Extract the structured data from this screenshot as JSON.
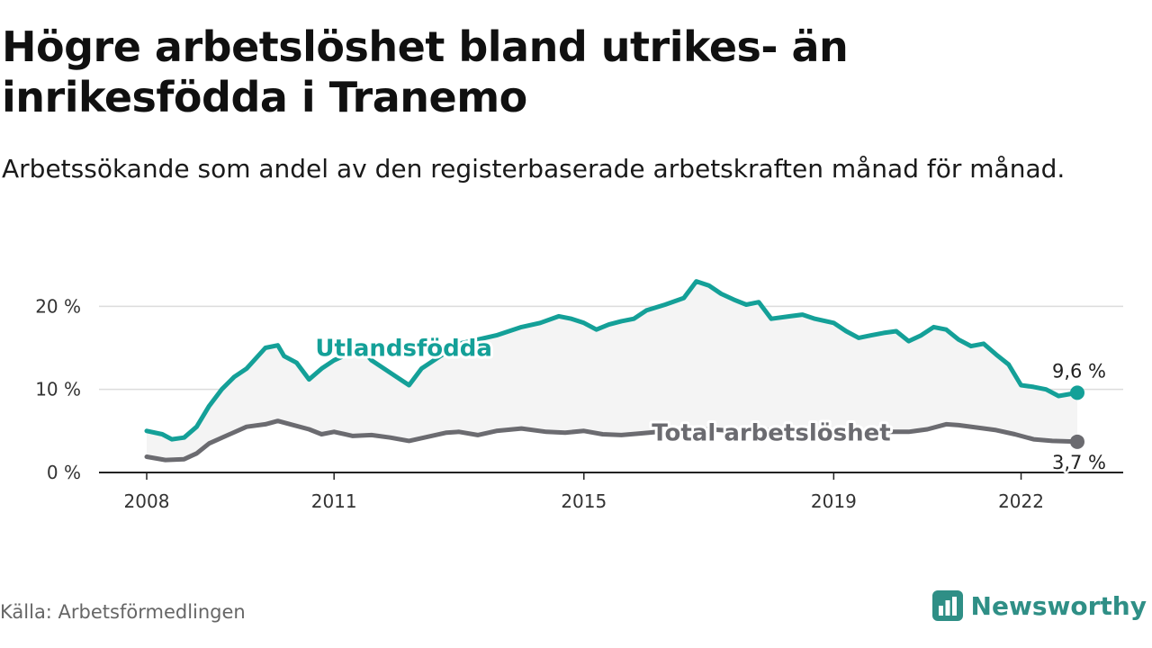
{
  "header": {
    "title": "Högre arbetslöshet bland utrikes- än inrikesfödda i Tranemo",
    "subtitle": "Arbetssökande som andel av den registerbaserade arbetskraften månad för månad."
  },
  "footer": {
    "source": "Källa: Arbetsförmedlingen",
    "brand": "Newsworthy",
    "brand_icon": "newsworthy-logo-icon"
  },
  "colors": {
    "foreign": "#14a098",
    "total": "#6b6b70",
    "band": "#ededed",
    "grid": "#dcdcdc",
    "brand": "#2f8f86"
  },
  "chart_data": {
    "type": "line",
    "title": "Högre arbetslöshet bland utrikes- än inrikesfödda i Tranemo",
    "xlabel": "",
    "ylabel": "",
    "xlim": [
      2008.0,
      2022.9
    ],
    "ylim": [
      0,
      23.5
    ],
    "x_ticks": [
      {
        "value": 2008,
        "label": "2008"
      },
      {
        "value": 2011,
        "label": "2011"
      },
      {
        "value": 2015,
        "label": "2015"
      },
      {
        "value": 2019,
        "label": "2019"
      },
      {
        "value": 2022,
        "label": "2022"
      }
    ],
    "y_ticks": [
      {
        "value": 0,
        "label": "0 %"
      },
      {
        "value": 10,
        "label": "10 %"
      },
      {
        "value": 20,
        "label": "20 %"
      }
    ],
    "grid": true,
    "shaded_band": "between series",
    "series": [
      {
        "name": "Utlandsfödda",
        "label": "Utlandsfödda",
        "end_label": "9,6 %",
        "color": "#14a098",
        "x": [
          2008.0,
          2008.25,
          2008.4,
          2008.6,
          2008.8,
          2009.0,
          2009.2,
          2009.4,
          2009.6,
          2009.9,
          2010.1,
          2010.2,
          2010.4,
          2010.6,
          2010.8,
          2011.0,
          2011.2,
          2011.4,
          2011.6,
          2011.8,
          2012.0,
          2012.2,
          2012.4,
          2012.6,
          2012.8,
          2013.0,
          2013.3,
          2013.6,
          2014.0,
          2014.3,
          2014.6,
          2014.8,
          2015.0,
          2015.2,
          2015.4,
          2015.6,
          2015.8,
          2016.0,
          2016.3,
          2016.6,
          2016.8,
          2017.0,
          2017.2,
          2017.4,
          2017.6,
          2017.8,
          2018.0,
          2018.3,
          2018.5,
          2018.7,
          2019.0,
          2019.2,
          2019.4,
          2019.6,
          2019.8,
          2020.0,
          2020.2,
          2020.4,
          2020.6,
          2020.8,
          2021.0,
          2021.2,
          2021.4,
          2021.6,
          2021.8,
          2022.0,
          2022.2,
          2022.4,
          2022.6,
          2022.9
        ],
        "values": [
          5.0,
          4.6,
          4.0,
          4.2,
          5.5,
          8.0,
          10.0,
          11.5,
          12.5,
          15.0,
          15.3,
          14.0,
          13.2,
          11.2,
          12.5,
          13.5,
          14.2,
          15.2,
          13.5,
          12.5,
          11.5,
          10.5,
          12.5,
          13.5,
          14.5,
          15.5,
          16.0,
          16.5,
          17.5,
          18.0,
          18.8,
          18.5,
          18.0,
          17.2,
          17.8,
          18.2,
          18.5,
          19.5,
          20.2,
          21.0,
          23.0,
          22.5,
          21.5,
          20.8,
          20.2,
          20.5,
          18.5,
          18.8,
          19.0,
          18.5,
          18.0,
          17.0,
          16.2,
          16.5,
          16.8,
          17.0,
          15.8,
          16.5,
          17.5,
          17.2,
          16.0,
          15.2,
          15.5,
          14.2,
          13.0,
          10.5,
          10.3,
          10.0,
          9.2,
          9.6
        ]
      },
      {
        "name": "Total arbetslöshet",
        "label": "Total arbetslöshet",
        "end_label": "3,7 %",
        "color": "#6b6b70",
        "x": [
          2008.0,
          2008.3,
          2008.6,
          2008.8,
          2009.0,
          2009.3,
          2009.6,
          2009.9,
          2010.1,
          2010.3,
          2010.6,
          2010.8,
          2011.0,
          2011.3,
          2011.6,
          2011.9,
          2012.2,
          2012.5,
          2012.8,
          2013.0,
          2013.3,
          2013.6,
          2014.0,
          2014.4,
          2014.7,
          2015.0,
          2015.3,
          2015.6,
          2015.9,
          2016.2,
          2016.5,
          2016.8,
          2017.0,
          2017.4,
          2017.8,
          2018.2,
          2018.6,
          2019.0,
          2019.4,
          2019.8,
          2020.2,
          2020.5,
          2020.8,
          2021.0,
          2021.3,
          2021.6,
          2021.9,
          2022.2,
          2022.5,
          2022.9
        ],
        "values": [
          1.9,
          1.5,
          1.6,
          2.3,
          3.5,
          4.5,
          5.5,
          5.8,
          6.2,
          5.8,
          5.2,
          4.6,
          4.9,
          4.4,
          4.5,
          4.2,
          3.8,
          4.3,
          4.8,
          4.9,
          4.5,
          5.0,
          5.3,
          4.9,
          4.8,
          5.0,
          4.6,
          4.5,
          4.7,
          4.9,
          5.0,
          5.1,
          5.2,
          5.0,
          5.1,
          5.0,
          4.9,
          4.9,
          4.8,
          4.9,
          4.9,
          5.2,
          5.8,
          5.7,
          5.4,
          5.1,
          4.6,
          4.0,
          3.8,
          3.7
        ]
      }
    ]
  }
}
